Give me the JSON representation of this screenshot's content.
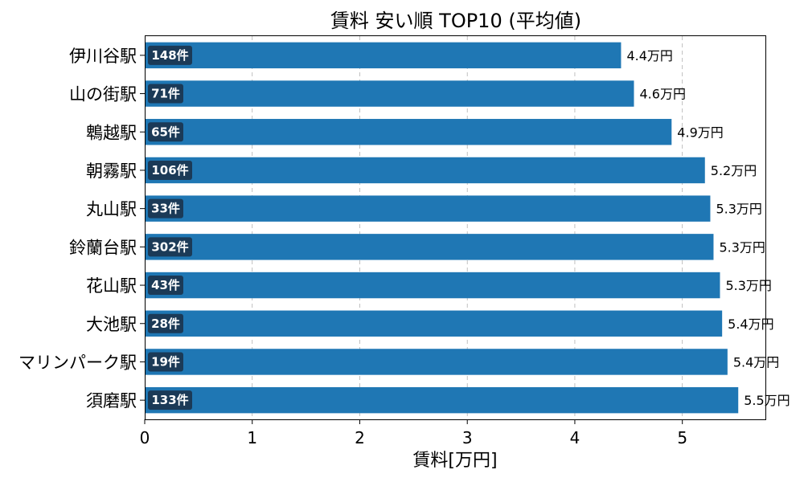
{
  "chart_data": {
    "type": "bar",
    "orientation": "horizontal",
    "title": "賃料 安い順 TOP10 (平均値)",
    "xlabel": "賃料[万円]",
    "ylabel": "",
    "xlim": [
      0,
      5.78
    ],
    "xticks": [
      "0",
      "1",
      "2",
      "3",
      "4",
      "5"
    ],
    "grid": "x-dashed",
    "bar_color": "#1f77b4",
    "count_badge_color": "#1b3a57",
    "categories": [
      "伊川谷駅",
      "山の街駅",
      "鵯越駅",
      "朝霧駅",
      "丸山駅",
      "鈴蘭台駅",
      "花山駅",
      "大池駅",
      "マリンパーク駅",
      "須磨駅"
    ],
    "values": [
      4.43,
      4.55,
      4.9,
      5.21,
      5.26,
      5.29,
      5.35,
      5.37,
      5.42,
      5.52
    ],
    "value_labels": [
      "4.4万円",
      "4.6万円",
      "4.9万円",
      "5.2万円",
      "5.3万円",
      "5.3万円",
      "5.3万円",
      "5.4万円",
      "5.4万円",
      "5.5万円"
    ],
    "count_labels": [
      "148件",
      "71件",
      "65件",
      "106件",
      "33件",
      "302件",
      "43件",
      "28件",
      "19件",
      "133件"
    ]
  }
}
